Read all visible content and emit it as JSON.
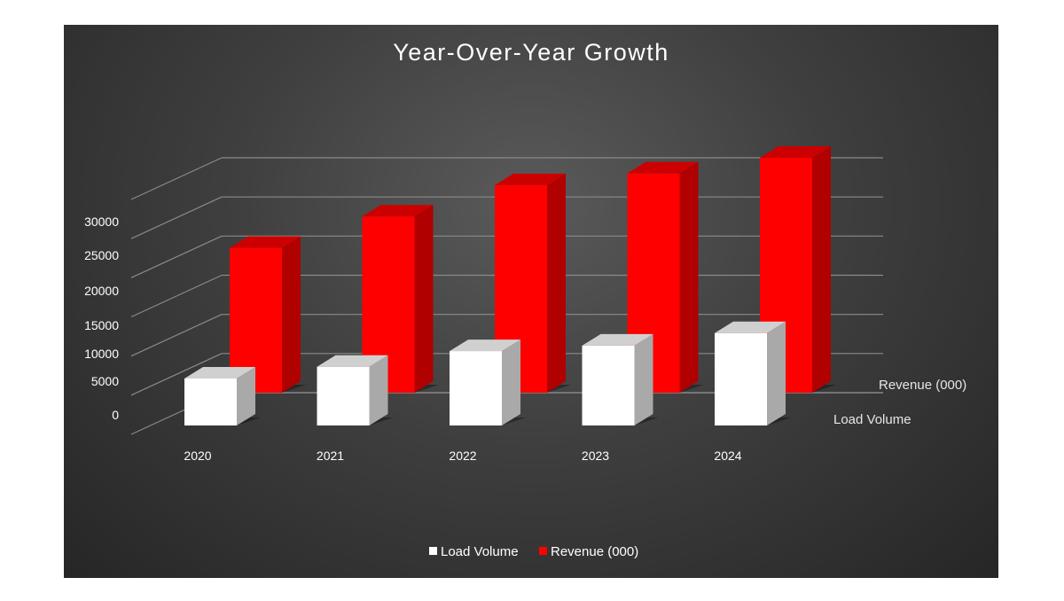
{
  "chart_data": {
    "type": "bar",
    "title": "Year-Over-Year Growth",
    "categories": [
      "2020",
      "2021",
      "2022",
      "2023",
      "2024"
    ],
    "series": [
      {
        "name": "Load Volume",
        "values": [
          6000,
          7500,
          9500,
          10200,
          11800
        ],
        "color": "#ffffff"
      },
      {
        "name": "Revenue (000)",
        "values": [
          18500,
          22500,
          26500,
          28000,
          30000
        ],
        "color": "#ff0000"
      }
    ],
    "y_ticks": [
      "0",
      "5000",
      "10000",
      "15000",
      "20000",
      "25000",
      "30000"
    ],
    "ylim": [
      0,
      30000
    ],
    "depth_labels": [
      "Load Volume",
      "Revenue (000)"
    ],
    "legend": {
      "position": "bottom",
      "items": [
        {
          "label": "Load Volume",
          "color": "#ffffff"
        },
        {
          "label": "Revenue (000)",
          "color": "#ff0000"
        }
      ]
    },
    "grid": true
  }
}
